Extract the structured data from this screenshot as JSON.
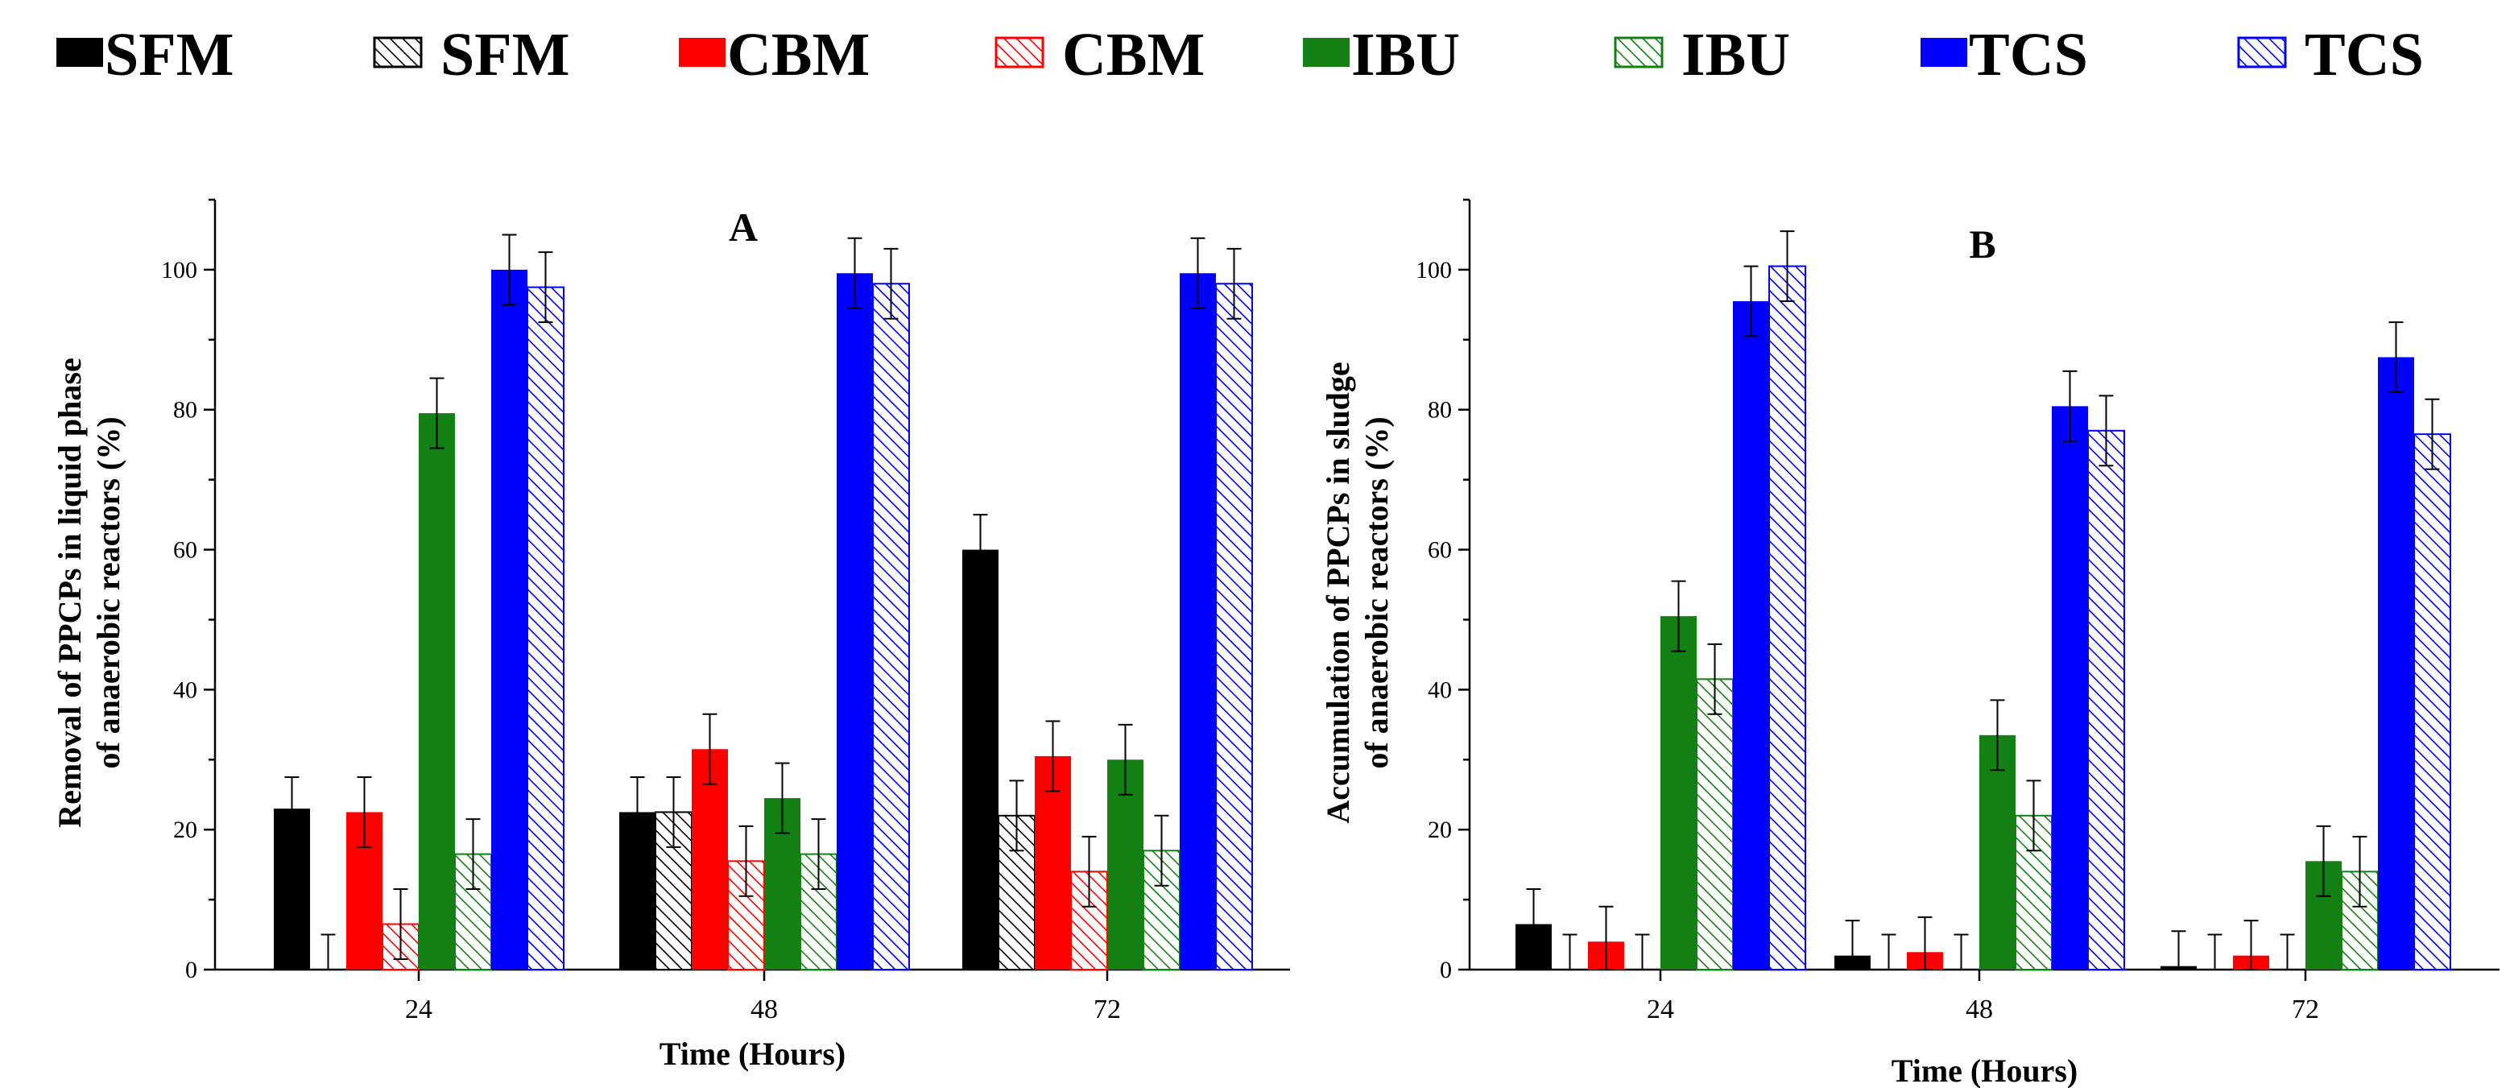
{
  "colors": {
    "SFM": "#000000",
    "CBM": "#ff0000",
    "IBU": "#138013",
    "TCS": "#0000ff"
  },
  "legend": [
    {
      "label": "SFM",
      "color_key": "SFM",
      "pattern": "solid"
    },
    {
      "label": "SFM",
      "color_key": "SFM",
      "pattern": "hatched"
    },
    {
      "label": "CBM",
      "color_key": "CBM",
      "pattern": "solid"
    },
    {
      "label": "CBM",
      "color_key": "CBM",
      "pattern": "hatched"
    },
    {
      "label": "IBU",
      "color_key": "IBU",
      "pattern": "solid"
    },
    {
      "label": "IBU",
      "color_key": "IBU",
      "pattern": "hatched"
    },
    {
      "label": "TCS",
      "color_key": "TCS",
      "pattern": "solid"
    },
    {
      "label": "TCS",
      "color_key": "TCS",
      "pattern": "hatched"
    }
  ],
  "chart_data": [
    {
      "type": "bar",
      "panel": "A",
      "xlabel": "Time (Hours)",
      "ylabel": [
        "Removal of PPCPs in liquid phase",
        "of anaerobic  reactors (%)"
      ],
      "ylim": [
        0,
        110
      ],
      "yticks": [
        0,
        20,
        40,
        60,
        80,
        100
      ],
      "categories": [
        "24",
        "48",
        "72"
      ],
      "series": [
        {
          "name": "SFM",
          "pattern": "solid",
          "values": [
            23,
            22.5,
            60
          ],
          "errors": [
            4.5,
            5,
            5
          ]
        },
        {
          "name": "SFM",
          "pattern": "hatched",
          "values": [
            0,
            22.5,
            22
          ],
          "errors": [
            5,
            5,
            5
          ]
        },
        {
          "name": "CBM",
          "pattern": "solid",
          "values": [
            22.5,
            31.5,
            30.5
          ],
          "errors": [
            5,
            5,
            5
          ]
        },
        {
          "name": "CBM",
          "pattern": "hatched",
          "values": [
            6.5,
            15.5,
            14
          ],
          "errors": [
            5,
            5,
            5
          ]
        },
        {
          "name": "IBU",
          "pattern": "solid",
          "values": [
            79.5,
            24.5,
            30
          ],
          "errors": [
            5,
            5,
            5
          ]
        },
        {
          "name": "IBU",
          "pattern": "hatched",
          "values": [
            16.5,
            16.5,
            17
          ],
          "errors": [
            5,
            5,
            5
          ]
        },
        {
          "name": "TCS",
          "pattern": "solid",
          "values": [
            100,
            99.5,
            99.5
          ],
          "errors": [
            5,
            5,
            5
          ]
        },
        {
          "name": "TCS",
          "pattern": "hatched",
          "values": [
            97.5,
            98,
            98
          ],
          "errors": [
            5,
            5,
            5
          ]
        }
      ]
    },
    {
      "type": "bar",
      "panel": "B",
      "xlabel": "Time (Hours)",
      "ylabel": [
        "Accumulation of PPCPs in sludge",
        "of anaerobic  reactors (%)"
      ],
      "ylim": [
        0,
        110
      ],
      "yticks": [
        0,
        20,
        40,
        60,
        80,
        100
      ],
      "categories": [
        "24",
        "48",
        "72"
      ],
      "series": [
        {
          "name": "SFM",
          "pattern": "solid",
          "values": [
            6.5,
            2,
            0.5
          ],
          "errors": [
            5,
            5,
            5
          ]
        },
        {
          "name": "SFM",
          "pattern": "hatched",
          "values": [
            0,
            0,
            0
          ],
          "errors": [
            5,
            5,
            5
          ]
        },
        {
          "name": "CBM",
          "pattern": "solid",
          "values": [
            4,
            2.5,
            2
          ],
          "errors": [
            5,
            5,
            5
          ]
        },
        {
          "name": "CBM",
          "pattern": "hatched",
          "values": [
            0,
            0,
            0
          ],
          "errors": [
            5,
            5,
            5
          ]
        },
        {
          "name": "IBU",
          "pattern": "solid",
          "values": [
            50.5,
            33.5,
            15.5
          ],
          "errors": [
            5,
            5,
            5
          ]
        },
        {
          "name": "IBU",
          "pattern": "hatched",
          "values": [
            41.5,
            22,
            14
          ],
          "errors": [
            5,
            5,
            5
          ]
        },
        {
          "name": "TCS",
          "pattern": "solid",
          "values": [
            95.5,
            80.5,
            87.5
          ],
          "errors": [
            5,
            5,
            5
          ]
        },
        {
          "name": "TCS",
          "pattern": "hatched",
          "values": [
            100.5,
            77,
            76.5
          ],
          "errors": [
            5,
            5,
            5
          ]
        }
      ]
    }
  ]
}
